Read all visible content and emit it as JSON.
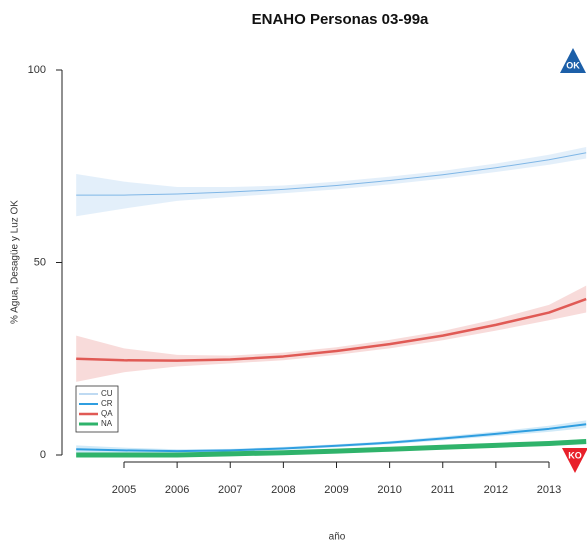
{
  "chart_data": {
    "type": "line",
    "title": "ENAHO Personas 03-99a",
    "x_label": "año",
    "y_label": "% Agua, Desagüe y Luz OK",
    "x": [
      2004.1,
      2005,
      2006,
      2007,
      2008,
      2009,
      2010,
      2011,
      2012,
      2013,
      2013.7
    ],
    "xlim": [
      2004,
      2014
    ],
    "xticks": [
      2005,
      2006,
      2007,
      2008,
      2009,
      2010,
      2011,
      2012,
      2013
    ],
    "ylim": [
      0,
      100
    ],
    "yticks": [
      0,
      50,
      100
    ],
    "legend": "bottom-left",
    "top_badge": "OK",
    "bottom_badge": "KO",
    "series": [
      {
        "name": "CU",
        "color": "#7fb6e6",
        "line_width": 1,
        "values": [
          67.5,
          67.5,
          67.8,
          68.3,
          69,
          70,
          71.3,
          72.8,
          74.6,
          76.7,
          78.5
        ],
        "lower": [
          62,
          64,
          66,
          67,
          68,
          69,
          70.3,
          71.8,
          73.5,
          75.4,
          77
        ],
        "upper": [
          73,
          71,
          69.6,
          69.6,
          70,
          71,
          72.3,
          73.8,
          75.7,
          78,
          80
        ]
      },
      {
        "name": "CR",
        "color": "#2f9ee0",
        "line_width": 2,
        "values": [
          1.5,
          1.2,
          1,
          1.2,
          1.7,
          2.4,
          3.2,
          4.3,
          5.5,
          6.8,
          8
        ],
        "lower": [
          0.5,
          0.5,
          0.5,
          0.8,
          1.3,
          2,
          2.8,
          3.8,
          4.9,
          6,
          7
        ],
        "upper": [
          2.5,
          1.9,
          1.5,
          1.6,
          2.1,
          2.8,
          3.6,
          4.8,
          6.1,
          7.6,
          9
        ]
      },
      {
        "name": "QA",
        "color": "#e05a55",
        "line_width": 2.5,
        "values": [
          25,
          24.6,
          24.5,
          24.8,
          25.6,
          27,
          28.8,
          31,
          33.8,
          37,
          40.5
        ],
        "lower": [
          19,
          21.5,
          23,
          23.8,
          24.6,
          26,
          27.7,
          29.8,
          32.3,
          35,
          37
        ],
        "upper": [
          31,
          27.7,
          26,
          25.8,
          26.6,
          28,
          29.9,
          32.2,
          35.3,
          39,
          44
        ]
      },
      {
        "name": "NA",
        "color": "#2fb36b",
        "line_width": 5,
        "values": [
          0,
          0,
          0,
          0.3,
          0.6,
          1,
          1.5,
          2,
          2.5,
          3,
          3.5
        ],
        "lower": [
          -0.5,
          -0.5,
          -0.4,
          -0.1,
          0.2,
          0.6,
          1.1,
          1.5,
          2,
          2.4,
          2.8
        ],
        "upper": [
          0.5,
          0.5,
          0.4,
          0.7,
          1,
          1.4,
          1.9,
          2.5,
          3,
          3.6,
          4.2
        ]
      }
    ]
  }
}
